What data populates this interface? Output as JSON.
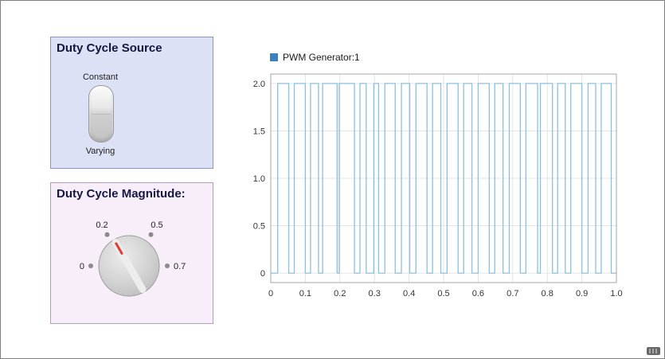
{
  "window": {
    "background": "#ffffff"
  },
  "source_panel": {
    "title": "Duty Cycle Source",
    "option_top": "Constant",
    "option_bottom": "Varying"
  },
  "magnitude_panel": {
    "title": "Duty Cycle Magnitude:",
    "pointer_color": "#e03c31",
    "knob_labels": [
      {
        "text": "0"
      },
      {
        "text": "0.2"
      },
      {
        "text": "0.5"
      },
      {
        "text": "0.7"
      }
    ]
  },
  "chart_data": {
    "type": "line",
    "title": "",
    "xlabel": "",
    "ylabel": "",
    "legend": [
      {
        "label": "PWM Generator:1",
        "color": "#3b7fc4"
      }
    ],
    "legend_position": "top-left",
    "line_color": "#8bc0e0",
    "grid": true,
    "grid_color": "#e4e4e4",
    "box_color": "#a6a6a6",
    "xlim": [
      0,
      1
    ],
    "ylim": [
      -0.1,
      2.1
    ],
    "xticks": [
      {
        "v": 0,
        "label": "0"
      },
      {
        "v": 0.1,
        "label": "0.1"
      },
      {
        "v": 0.2,
        "label": "0.2"
      },
      {
        "v": 0.3,
        "label": "0.3"
      },
      {
        "v": 0.4,
        "label": "0.4"
      },
      {
        "v": 0.5,
        "label": "0.5"
      },
      {
        "v": 0.6,
        "label": "0.6"
      },
      {
        "v": 0.7,
        "label": "0.7"
      },
      {
        "v": 0.8,
        "label": "0.8"
      },
      {
        "v": 0.9,
        "label": "0.9"
      },
      {
        "v": 1,
        "label": "1.0"
      }
    ],
    "yticks": [
      {
        "v": 0,
        "label": "0"
      },
      {
        "v": 0.5,
        "label": "0.5"
      },
      {
        "v": 1,
        "label": "1.0"
      },
      {
        "v": 1.5,
        "label": "1.5"
      },
      {
        "v": 2,
        "label": "2.0"
      }
    ],
    "signal": {
      "low": 0,
      "high": 2,
      "pulses": [
        [
          0.02,
          0.052
        ],
        [
          0.068,
          0.1
        ],
        [
          0.115,
          0.138
        ],
        [
          0.15,
          0.192
        ],
        [
          0.198,
          0.242
        ],
        [
          0.258,
          0.276
        ],
        [
          0.298,
          0.312
        ],
        [
          0.33,
          0.36
        ],
        [
          0.378,
          0.402
        ],
        [
          0.42,
          0.452
        ],
        [
          0.468,
          0.492
        ],
        [
          0.51,
          0.542
        ],
        [
          0.558,
          0.582
        ],
        [
          0.6,
          0.632
        ],
        [
          0.648,
          0.672
        ],
        [
          0.69,
          0.722
        ],
        [
          0.738,
          0.772
        ],
        [
          0.78,
          0.815
        ],
        [
          0.83,
          0.852
        ],
        [
          0.868,
          0.9
        ],
        [
          0.918,
          0.94
        ],
        [
          0.956,
          0.985
        ]
      ]
    }
  }
}
